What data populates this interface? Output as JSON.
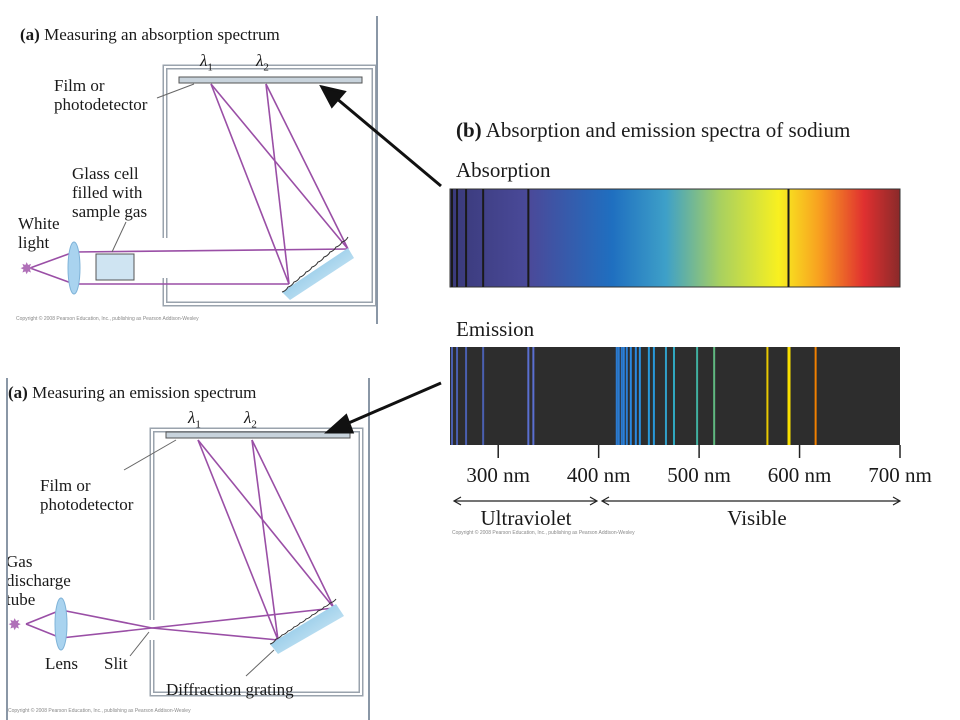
{
  "colors": {
    "beam": "#9a4fa6",
    "frame": "#9aa3ad",
    "arrow": "#111111",
    "spectrum_dark": "#2d2d2d",
    "absorption_line": "#1a1a1a",
    "divider": "#8a97a6"
  },
  "panel_absorption_setup": {
    "title_bold": "(a)",
    "title_rest": " Measuring an absorption spectrum",
    "lambda1": "λ1",
    "lambda2": "λ2",
    "film_label_1": "Film or",
    "film_label_2": "photodetector",
    "cell_label_1": "Glass cell",
    "cell_label_2": "filled with",
    "cell_label_3": "sample gas",
    "source_label_1": "White",
    "source_label_2": "light",
    "copyright": "Copyright © 2008 Pearson Education, Inc., publishing as Pearson Addison-Wesley"
  },
  "panel_emission_setup": {
    "title_bold": "(a)",
    "title_rest": " Measuring an emission spectrum",
    "lambda1": "λ1",
    "lambda2": "λ2",
    "film_label_1": "Film or",
    "film_label_2": "photodetector",
    "source_label_1": "Gas",
    "source_label_2": "discharge",
    "source_label_3": "tube",
    "lens_label": "Lens",
    "slit_label": "Slit",
    "grating_label": "Diffraction grating",
    "copyright": "Copyright © 2008 Pearson Education, Inc., publishing as Pearson Addison-Wesley"
  },
  "panel_spectra": {
    "title_bold": "(b)",
    "title_rest": " Absorption and emission spectra of sodium",
    "absorption_label": "Absorption",
    "emission_label": "Emission",
    "axis_ticks": [
      "300 nm",
      "400 nm",
      "500 nm",
      "600 nm",
      "700 nm"
    ],
    "uv_label": "Ultraviolet",
    "visible_label": "Visible",
    "copyright": "Copyright © 2008 Pearson Education, Inc., publishing as Pearson Addison-Wesley"
  },
  "chart_data": {
    "type": "spectrum",
    "x_unit": "nm",
    "xlim": [
      252,
      700
    ],
    "ticks": [
      300,
      400,
      500,
      600,
      700
    ],
    "absorption_lines_nm": [
      254,
      259,
      268,
      285,
      330,
      589
    ],
    "emission_lines": [
      {
        "nm": 254,
        "color": "#4a5fb0"
      },
      {
        "nm": 259,
        "color": "#4a5fb0"
      },
      {
        "nm": 268,
        "color": "#4a5fb0"
      },
      {
        "nm": 285,
        "color": "#4a5fb0"
      },
      {
        "nm": 330,
        "color": "#5a6fd0"
      },
      {
        "nm": 335,
        "color": "#5a6fd0"
      },
      {
        "nm": 418,
        "color": "#2a7ad0"
      },
      {
        "nm": 420,
        "color": "#2a7ad0"
      },
      {
        "nm": 423,
        "color": "#2a7ad0"
      },
      {
        "nm": 425,
        "color": "#2a80d8"
      },
      {
        "nm": 428,
        "color": "#2a80d8"
      },
      {
        "nm": 432,
        "color": "#2a88e0"
      },
      {
        "nm": 437,
        "color": "#2a88e0"
      },
      {
        "nm": 441,
        "color": "#2a90e0"
      },
      {
        "nm": 450,
        "color": "#2898d8"
      },
      {
        "nm": 455,
        "color": "#2898d8"
      },
      {
        "nm": 467,
        "color": "#30a0c8"
      },
      {
        "nm": 475,
        "color": "#30a8c0"
      },
      {
        "nm": 498,
        "color": "#40b0a0"
      },
      {
        "nm": 515,
        "color": "#60b880"
      },
      {
        "nm": 568,
        "color": "#e8c800"
      },
      {
        "nm": 589,
        "color": "#f8e000"
      },
      {
        "nm": 590,
        "color": "#f8e000"
      },
      {
        "nm": 616,
        "color": "#f08000"
      }
    ]
  }
}
